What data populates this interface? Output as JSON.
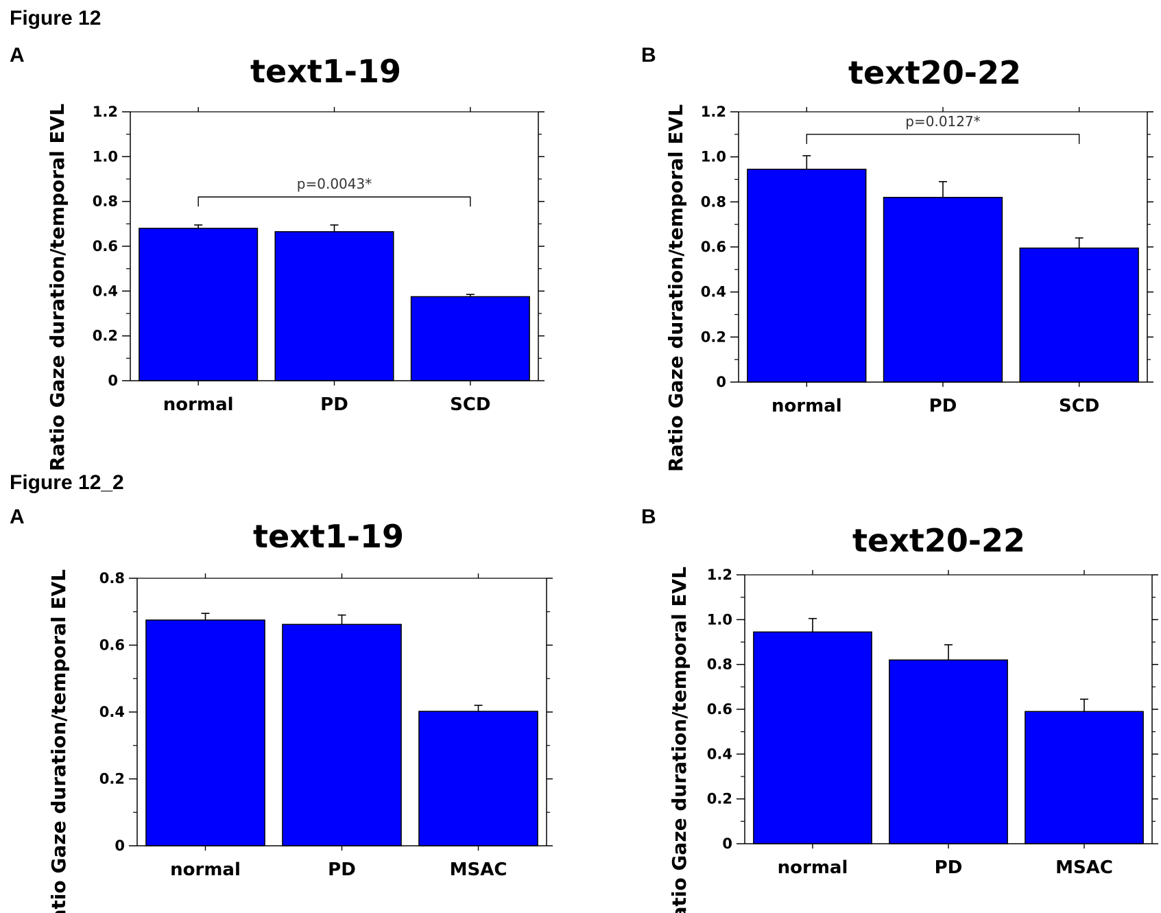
{
  "figure_titles": [
    "Figure 12",
    "Figure 12_2"
  ],
  "bar_color": "#0000ff",
  "chart_data": [
    {
      "type": "bar",
      "panel": "A",
      "title": "text1-19",
      "xlabel": "",
      "ylabel": "Ratio Gaze duration/temporal EVL",
      "categories": [
        "normal",
        "PD",
        "SCD"
      ],
      "values": [
        0.68,
        0.665,
        0.375
      ],
      "errors": [
        0.015,
        0.03,
        0.01
      ],
      "ylim": [
        0,
        1.2
      ],
      "yticks": [
        0,
        0.2,
        0.4,
        0.6,
        0.8,
        1.0,
        1.2
      ],
      "ytick_labels": [
        "0",
        "0.2",
        "0.4",
        "0.6",
        "0.8",
        "1.0",
        "1.2"
      ],
      "significance": {
        "from": 0,
        "to": 2,
        "label": "p=0.0043*",
        "level": 0.82
      }
    },
    {
      "type": "bar",
      "panel": "B",
      "title": "text20-22",
      "xlabel": "",
      "ylabel": "Ratio Gaze duration/temporal EVL",
      "categories": [
        "normal",
        "PD",
        "SCD"
      ],
      "values": [
        0.945,
        0.82,
        0.595
      ],
      "errors": [
        0.06,
        0.07,
        0.045
      ],
      "ylim": [
        0,
        1.2
      ],
      "yticks": [
        0,
        0.2,
        0.4,
        0.6,
        0.8,
        1.0,
        1.2
      ],
      "ytick_labels": [
        "0",
        "0.2",
        "0.4",
        "0.6",
        "0.8",
        "1.0",
        "1.2"
      ],
      "significance": {
        "from": 0,
        "to": 2,
        "label": "p=0.0127*",
        "level": 1.1
      }
    },
    {
      "type": "bar",
      "panel": "A",
      "title": "text1-19",
      "xlabel": "",
      "ylabel": "Ratio Gaze duration/temporal EVL",
      "categories": [
        "normal",
        "PD",
        "MSAC"
      ],
      "values": [
        0.675,
        0.662,
        0.402
      ],
      "errors": [
        0.02,
        0.028,
        0.018
      ],
      "ylim": [
        0,
        0.8
      ],
      "yticks": [
        0,
        0.2,
        0.4,
        0.6,
        0.8
      ],
      "ytick_labels": [
        "0",
        "0.2",
        "0.4",
        "0.6",
        "0.8"
      ],
      "significance": null
    },
    {
      "type": "bar",
      "panel": "B",
      "title": "text20-22",
      "xlabel": "",
      "ylabel": "Ratio Gaze duration/temporal EVL",
      "categories": [
        "normal",
        "PD",
        "MSAC"
      ],
      "values": [
        0.945,
        0.82,
        0.59
      ],
      "errors": [
        0.06,
        0.068,
        0.055
      ],
      "ylim": [
        0,
        1.2
      ],
      "yticks": [
        0,
        0.2,
        0.4,
        0.6,
        0.8,
        1.0,
        1.2
      ],
      "ytick_labels": [
        "0",
        "0.2",
        "0.4",
        "0.6",
        "0.8",
        "1.0",
        "1.2"
      ],
      "significance": null
    }
  ]
}
